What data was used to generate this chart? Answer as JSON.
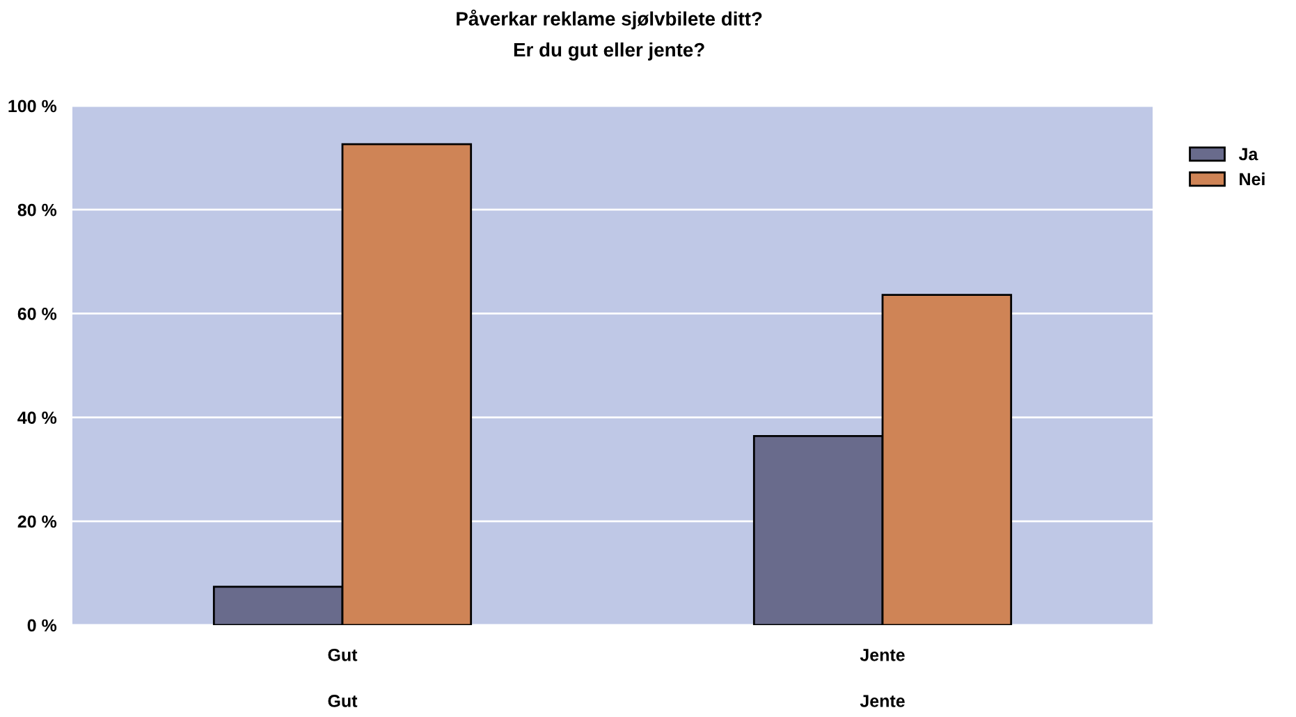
{
  "chart_data": {
    "type": "bar",
    "title": "Påverkar reklame sjølvbilete ditt?",
    "subtitle": "Er du gut eller jente?",
    "categories": [
      "Gut",
      "Jente"
    ],
    "series": [
      {
        "name": "Ja",
        "color": "#696b8c",
        "values": [
          7.4,
          36.4
        ]
      },
      {
        "name": "Nei",
        "color": "#cf8456",
        "values": [
          92.6,
          63.6
        ]
      }
    ],
    "ylim": [
      0,
      100
    ],
    "yticks": [
      {
        "value": 0,
        "label": "0 %"
      },
      {
        "value": 20,
        "label": "20 %"
      },
      {
        "value": 40,
        "label": "40 %"
      },
      {
        "value": 60,
        "label": "60 %"
      },
      {
        "value": 80,
        "label": "80 %"
      },
      {
        "value": 100,
        "label": "100 %"
      }
    ],
    "annotations": [
      "Gut",
      "Jente"
    ],
    "grid": "y",
    "legend": "top right"
  }
}
